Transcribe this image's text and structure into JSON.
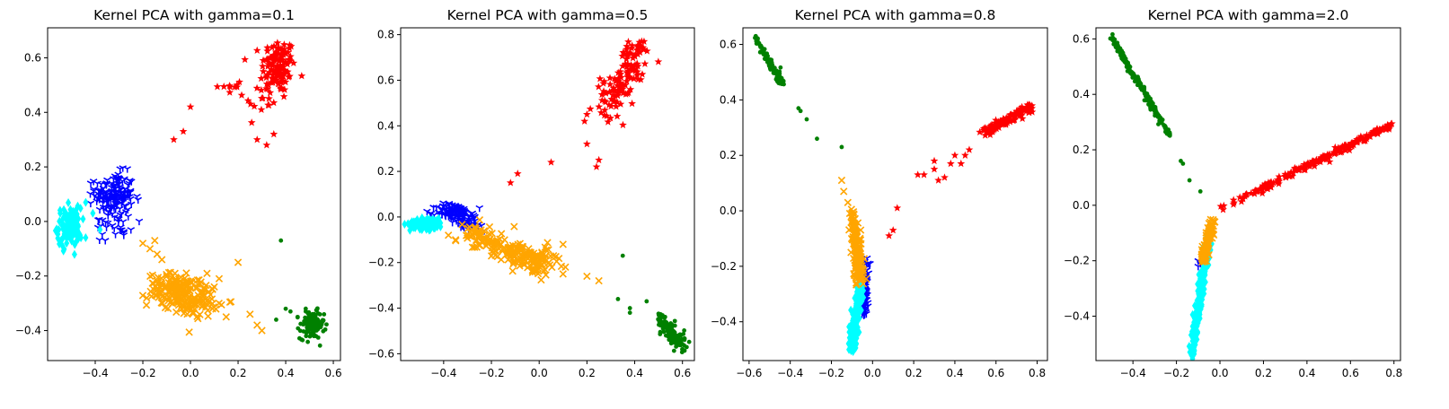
{
  "chart_data": [
    {
      "type": "scatter",
      "title": "Kernel PCA with gamma=0.1",
      "xlim": [
        -0.6,
        0.63
      ],
      "ylim": [
        -0.51,
        0.71
      ],
      "xticks": [
        -0.4,
        -0.2,
        0.0,
        0.2,
        0.4,
        0.6
      ],
      "xtick_labels": [
        "−0.4",
        "−0.2",
        "0.0",
        "0.2",
        "0.4",
        "0.6"
      ],
      "yticks": [
        -0.4,
        -0.2,
        0.0,
        0.2,
        0.4,
        0.6
      ],
      "ytick_labels": [
        "−0.4",
        "−0.2",
        "0.0",
        "0.2",
        "0.4",
        "0.6"
      ],
      "series": [
        {
          "color": "#ff0000",
          "marker": "star",
          "clusters": [
            {
              "cx": 0.37,
              "cy": 0.57,
              "sx": 0.035,
              "sy": 0.05,
              "n": 110
            },
            {
              "cx": 0.3,
              "cy": 0.45,
              "sx": 0.04,
              "sy": 0.05,
              "n": 20
            },
            {
              "cx": 0.19,
              "cy": 0.49,
              "sx": 0.05,
              "sy": 0.02,
              "n": 10
            }
          ],
          "points": [
            [
              0.0,
              0.42
            ],
            [
              -0.07,
              0.3
            ],
            [
              -0.03,
              0.33
            ],
            [
              0.32,
              0.28
            ],
            [
              0.28,
              0.3
            ],
            [
              0.35,
              0.32
            ]
          ]
        },
        {
          "color": "#0000ff",
          "marker": "tri",
          "clusters": [
            {
              "cx": -0.32,
              "cy": 0.1,
              "sx": 0.04,
              "sy": 0.04,
              "n": 150
            },
            {
              "cx": -0.32,
              "cy": 0.0,
              "sx": 0.05,
              "sy": 0.03,
              "n": 30
            }
          ],
          "points": [
            [
              -0.22,
              0.08
            ],
            [
              -0.25,
              -0.03
            ],
            [
              -0.28,
              -0.05
            ]
          ]
        },
        {
          "color": "#00ffff",
          "marker": "diamond",
          "clusters": [
            {
              "cx": -0.51,
              "cy": -0.02,
              "sx": 0.025,
              "sy": 0.035,
              "n": 120
            }
          ],
          "points": [
            [
              -0.44,
              0.07
            ],
            [
              -0.41,
              0.03
            ],
            [
              -0.38,
              -0.03
            ],
            [
              -0.46,
              -0.06
            ]
          ]
        },
        {
          "color": "#ffa500",
          "marker": "x",
          "clusters": [
            {
              "cx": -0.06,
              "cy": -0.25,
              "sx": 0.06,
              "sy": 0.03,
              "n": 130
            },
            {
              "cx": 0.02,
              "cy": -0.29,
              "sx": 0.05,
              "sy": 0.03,
              "n": 90
            }
          ],
          "points": [
            [
              -0.2,
              -0.08
            ],
            [
              -0.17,
              -0.1
            ],
            [
              -0.15,
              -0.07
            ],
            [
              -0.14,
              -0.12
            ],
            [
              -0.12,
              -0.14
            ],
            [
              0.2,
              -0.15
            ],
            [
              0.3,
              -0.4
            ],
            [
              0.25,
              -0.34
            ],
            [
              0.28,
              -0.38
            ],
            [
              0.12,
              -0.3
            ],
            [
              0.15,
              -0.35
            ],
            [
              0.1,
              -0.24
            ]
          ]
        },
        {
          "color": "#008000",
          "marker": "dot",
          "clusters": [
            {
              "cx": 0.51,
              "cy": -0.38,
              "sx": 0.025,
              "sy": 0.025,
              "n": 140
            }
          ],
          "points": [
            [
              0.38,
              -0.07
            ],
            [
              0.42,
              -0.33
            ],
            [
              0.45,
              -0.35
            ],
            [
              0.4,
              -0.32
            ],
            [
              0.36,
              -0.36
            ]
          ]
        }
      ]
    },
    {
      "type": "scatter",
      "title": "Kernel PCA with gamma=0.5",
      "xlim": [
        -0.58,
        0.65
      ],
      "ylim": [
        -0.63,
        0.83
      ],
      "xticks": [
        -0.4,
        -0.2,
        0.0,
        0.2,
        0.4,
        0.6
      ],
      "xtick_labels": [
        "−0.4",
        "−0.2",
        "0.0",
        "0.2",
        "0.4",
        "0.6"
      ],
      "yticks": [
        -0.6,
        -0.4,
        -0.2,
        0.0,
        0.2,
        0.4,
        0.6,
        0.8
      ],
      "ytick_labels": [
        "−0.6",
        "−0.4",
        "−0.2",
        "0.0",
        "0.2",
        "0.4",
        "0.6",
        "0.8"
      ],
      "series": [
        {
          "color": "#ff0000",
          "marker": "star",
          "line": {
            "from": [
              0.3,
              0.5
            ],
            "to": [
              0.43,
              0.76
            ],
            "spread": 0.03,
            "n": 100
          },
          "clusters": [
            {
              "cx": 0.3,
              "cy": 0.5,
              "sx": 0.04,
              "sy": 0.06,
              "n": 25
            }
          ],
          "points": [
            [
              -0.12,
              0.15
            ],
            [
              -0.09,
              0.19
            ],
            [
              0.05,
              0.24
            ],
            [
              0.2,
              0.32
            ],
            [
              0.25,
              0.25
            ],
            [
              0.24,
              0.22
            ],
            [
              0.2,
              0.45
            ],
            [
              0.19,
              0.42
            ]
          ]
        },
        {
          "color": "#0000ff",
          "marker": "tri",
          "clusters": [
            {
              "cx": -0.36,
              "cy": 0.02,
              "sx": 0.035,
              "sy": 0.02,
              "n": 100
            },
            {
              "cx": -0.29,
              "cy": -0.02,
              "sx": 0.03,
              "sy": 0.02,
              "n": 40
            }
          ],
          "points": [
            [
              -0.25,
              0.04
            ],
            [
              -0.23,
              -0.06
            ]
          ]
        },
        {
          "color": "#00ffff",
          "marker": "diamond",
          "clusters": [
            {
              "cx": -0.47,
              "cy": -0.03,
              "sx": 0.035,
              "sy": 0.012,
              "n": 120
            }
          ],
          "points": []
        },
        {
          "color": "#ffa500",
          "marker": "x",
          "line": {
            "from": [
              -0.32,
              -0.06
            ],
            "to": [
              0.05,
              -0.22
            ],
            "spread": 0.025,
            "n": 220
          },
          "clusters": [],
          "points": [
            [
              -0.38,
              -0.08
            ],
            [
              -0.35,
              -0.1
            ],
            [
              0.1,
              -0.12
            ],
            [
              0.11,
              -0.22
            ],
            [
              0.1,
              -0.25
            ],
            [
              0.2,
              -0.26
            ],
            [
              0.25,
              -0.28
            ],
            [
              0.06,
              -0.17
            ]
          ]
        },
        {
          "color": "#008000",
          "marker": "dot",
          "line": {
            "from": [
              0.5,
              -0.43
            ],
            "to": [
              0.6,
              -0.57
            ],
            "spread": 0.015,
            "n": 120
          },
          "clusters": [],
          "points": [
            [
              0.35,
              -0.17
            ],
            [
              0.33,
              -0.36
            ],
            [
              0.38,
              -0.4
            ],
            [
              0.38,
              -0.42
            ],
            [
              0.45,
              -0.37
            ]
          ]
        }
      ]
    },
    {
      "type": "scatter",
      "title": "Kernel PCA with gamma=0.8",
      "xlim": [
        -0.63,
        0.85
      ],
      "ylim": [
        -0.54,
        0.66
      ],
      "xticks": [
        -0.6,
        -0.4,
        -0.2,
        0.0,
        0.2,
        0.4,
        0.6,
        0.8
      ],
      "xtick_labels": [
        "−0.6",
        "−0.4",
        "−0.2",
        "0.0",
        "0.2",
        "0.4",
        "0.6",
        "0.8"
      ],
      "yticks": [
        -0.4,
        -0.2,
        0.0,
        0.2,
        0.4,
        0.6
      ],
      "ytick_labels": [
        "−0.4",
        "−0.2",
        "0.0",
        "0.2",
        "0.4",
        "0.6"
      ],
      "series": [
        {
          "color": "#ff0000",
          "marker": "star",
          "line": {
            "from": [
              0.52,
              0.27
            ],
            "to": [
              0.78,
              0.38
            ],
            "spread": 0.008,
            "n": 120
          },
          "clusters": [],
          "points": [
            [
              0.12,
              0.01
            ],
            [
              0.08,
              -0.09
            ],
            [
              0.1,
              -0.07
            ],
            [
              0.22,
              0.13
            ],
            [
              0.25,
              0.13
            ],
            [
              0.3,
              0.15
            ],
            [
              0.3,
              0.18
            ],
            [
              0.35,
              0.12
            ],
            [
              0.38,
              0.17
            ],
            [
              0.4,
              0.2
            ],
            [
              0.43,
              0.17
            ],
            [
              0.45,
              0.2
            ],
            [
              0.47,
              0.22
            ],
            [
              0.32,
              0.11
            ]
          ]
        },
        {
          "color": "#0000ff",
          "marker": "tri",
          "line": {
            "from": [
              -0.03,
              -0.18
            ],
            "to": [
              -0.04,
              -0.37
            ],
            "spread": 0.01,
            "n": 80
          },
          "clusters": [],
          "points": []
        },
        {
          "color": "#00ffff",
          "marker": "diamond",
          "line": {
            "from": [
              -0.06,
              -0.25
            ],
            "to": [
              -0.1,
              -0.5
            ],
            "spread": 0.01,
            "n": 150
          },
          "clusters": [],
          "points": []
        },
        {
          "color": "#ffa500",
          "marker": "x",
          "line": {
            "from": [
              -0.1,
              0.0
            ],
            "to": [
              -0.06,
              -0.25
            ],
            "spread": 0.012,
            "n": 150
          },
          "clusters": [],
          "points": [
            [
              -0.15,
              0.11
            ],
            [
              -0.14,
              0.07
            ],
            [
              -0.12,
              0.03
            ]
          ]
        },
        {
          "color": "#008000",
          "marker": "dot",
          "line": {
            "from": [
              -0.57,
              0.62
            ],
            "to": [
              -0.43,
              0.45
            ],
            "spread": 0.007,
            "n": 110
          },
          "clusters": [],
          "points": [
            [
              -0.36,
              0.37
            ],
            [
              -0.35,
              0.36
            ],
            [
              -0.32,
              0.33
            ],
            [
              -0.27,
              0.26
            ],
            [
              -0.15,
              0.23
            ]
          ]
        }
      ]
    },
    {
      "type": "scatter",
      "title": "Kernel PCA with gamma=2.0",
      "xlim": [
        -0.57,
        0.83
      ],
      "ylim": [
        -0.56,
        0.64
      ],
      "xticks": [
        -0.4,
        -0.2,
        0.0,
        0.2,
        0.4,
        0.6,
        0.8
      ],
      "xtick_labels": [
        "−0.4",
        "−0.2",
        "0.0",
        "0.2",
        "0.4",
        "0.6",
        "0.8"
      ],
      "yticks": [
        -0.4,
        -0.2,
        0.0,
        0.2,
        0.4,
        0.6
      ],
      "ytick_labels": [
        "−0.4",
        "−0.2",
        "0.0",
        "0.2",
        "0.4",
        "0.6"
      ],
      "series": [
        {
          "color": "#ff0000",
          "marker": "star",
          "line": {
            "from": [
              -0.02,
              -0.02
            ],
            "to": [
              0.79,
              0.29
            ],
            "spread": 0.006,
            "n": 200
          },
          "clusters": [],
          "points": []
        },
        {
          "color": "#0000ff",
          "marker": "tri",
          "clusters": [],
          "points": [
            [
              -0.1,
              -0.2
            ],
            [
              -0.1,
              -0.22
            ],
            [
              -0.09,
              -0.21
            ],
            [
              -0.08,
              -0.19
            ]
          ]
        },
        {
          "color": "#00ffff",
          "marker": "diamond",
          "line": {
            "from": [
              -0.05,
              -0.1
            ],
            "to": [
              -0.13,
              -0.54
            ],
            "spread": 0.008,
            "n": 250
          },
          "clusters": [],
          "points": []
        },
        {
          "color": "#ffa500",
          "marker": "x",
          "line": {
            "from": [
              -0.03,
              -0.05
            ],
            "to": [
              -0.08,
              -0.2
            ],
            "spread": 0.008,
            "n": 100
          },
          "clusters": [],
          "points": []
        },
        {
          "color": "#008000",
          "marker": "dot",
          "line": {
            "from": [
              -0.51,
              0.62
            ],
            "to": [
              -0.23,
              0.25
            ],
            "spread": 0.005,
            "n": 200
          },
          "clusters": [],
          "points": [
            [
              -0.18,
              0.16
            ],
            [
              -0.17,
              0.15
            ],
            [
              -0.14,
              0.09
            ],
            [
              -0.09,
              0.05
            ]
          ]
        }
      ]
    }
  ]
}
